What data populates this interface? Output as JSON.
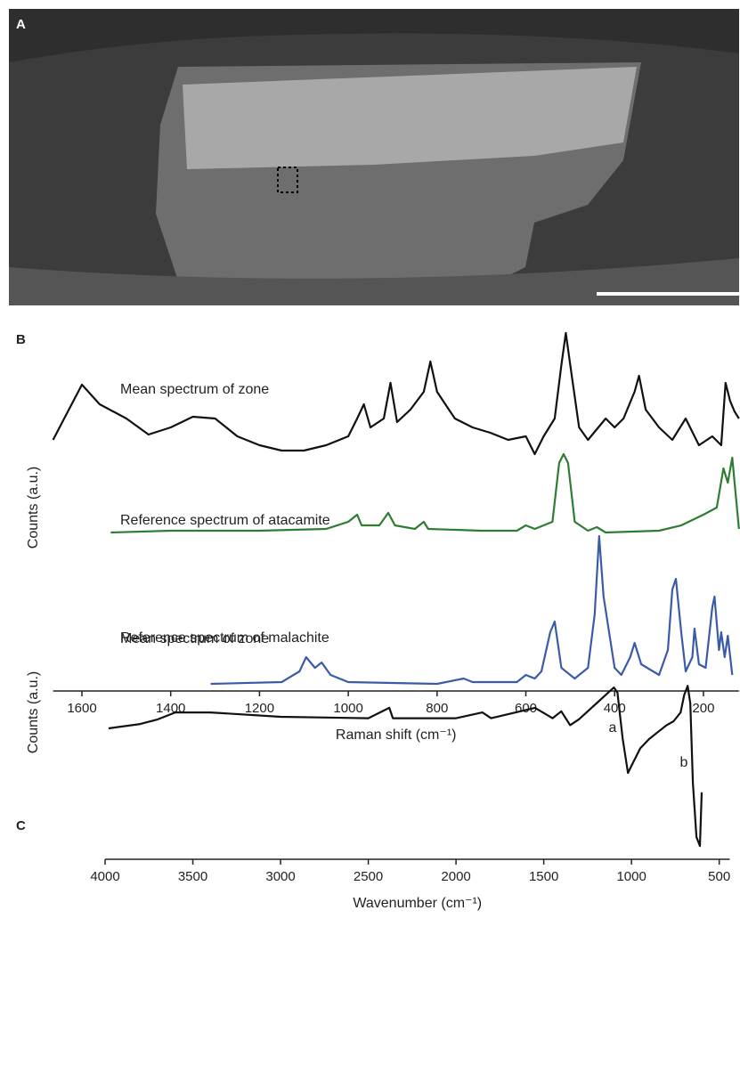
{
  "image_panel": {
    "label": "A"
  },
  "chart_data": [
    {
      "type": "line",
      "panel_label": "B",
      "xlabel": "Raman shift (cm⁻¹)",
      "ylabel": "Counts (a.u.)",
      "xlim": [
        1665,
        120
      ],
      "xticks": [
        1600,
        1400,
        1200,
        1000,
        800,
        600,
        400,
        200
      ],
      "ylim": [
        0,
        100
      ],
      "series": [
        {
          "name": "Mean spectrum of zone",
          "color": "#111111",
          "x": [
            1665,
            1640,
            1600,
            1560,
            1500,
            1450,
            1400,
            1350,
            1300,
            1250,
            1200,
            1150,
            1100,
            1050,
            1000,
            980,
            965,
            950,
            920,
            905,
            890,
            860,
            830,
            815,
            800,
            760,
            720,
            680,
            640,
            600,
            580,
            560,
            535,
            520,
            510,
            500,
            480,
            460,
            420,
            400,
            380,
            355,
            345,
            330,
            300,
            270,
            240,
            210,
            180,
            160,
            150,
            140,
            130,
            120
          ],
          "values": [
            69,
            75,
            84.5,
            79,
            75,
            70.5,
            72.5,
            75.5,
            75,
            70,
            67.5,
            66,
            66,
            67.5,
            70,
            75,
            79,
            72.5,
            75,
            85,
            74,
            77.5,
            82.5,
            91,
            82.5,
            75,
            72.5,
            71,
            69,
            70,
            65,
            70,
            75,
            90,
            99,
            90,
            72.5,
            69,
            75,
            72.5,
            75,
            82.5,
            87,
            77.5,
            72.5,
            69,
            75,
            67.5,
            70,
            67.5,
            85,
            80,
            77,
            75
          ]
        },
        {
          "name": "Reference spectrum of atacamite",
          "color": "#2e7d32",
          "x": [
            1535,
            1400,
            1200,
            1050,
            1000,
            980,
            970,
            930,
            910,
            895,
            850,
            830,
            820,
            700,
            620,
            600,
            580,
            540,
            525,
            515,
            505,
            490,
            460,
            440,
            420,
            300,
            250,
            200,
            170,
            155,
            145,
            135,
            120
          ],
          "values": [
            43,
            43.5,
            43.5,
            44,
            46,
            48,
            45,
            45,
            48.5,
            45,
            44,
            46,
            44,
            43.5,
            43.5,
            45,
            44,
            46,
            62.5,
            65,
            62.5,
            46,
            43.5,
            44.5,
            43,
            43.5,
            45,
            48,
            50,
            61,
            57,
            64,
            44
          ]
        },
        {
          "name": "Reference spectrum of malachite",
          "color": "#3a5ca8",
          "x": [
            1310,
            1150,
            1110,
            1095,
            1075,
            1060,
            1040,
            1000,
            800,
            740,
            720,
            620,
            600,
            580,
            565,
            545,
            535,
            520,
            490,
            460,
            445,
            435,
            425,
            400,
            385,
            365,
            355,
            340,
            300,
            280,
            270,
            262,
            250,
            240,
            225,
            220,
            210,
            195,
            180,
            175,
            165,
            160,
            152,
            145,
            135
          ],
          "values": [
            0.5,
            1,
            4,
            8,
            5,
            6.5,
            3,
            1,
            0.5,
            2,
            1,
            1,
            3,
            2,
            4,
            15,
            18,
            5,
            2,
            5,
            20,
            42,
            25,
            5,
            3,
            8,
            12,
            6,
            3,
            10,
            27,
            30,
            15,
            4,
            8,
            16,
            6,
            5,
            22,
            25,
            10,
            15,
            8,
            14,
            3
          ]
        }
      ]
    },
    {
      "type": "line",
      "panel_label": "C",
      "xlabel": "Wavenumber (cm⁻¹)",
      "ylabel": "Counts (a.u.)",
      "xlim": [
        4000,
        440
      ],
      "xticks": [
        4000,
        3500,
        3000,
        2500,
        2000,
        1500,
        1000,
        500
      ],
      "ylim": [
        0,
        100
      ],
      "annotations": [
        "a",
        "b"
      ],
      "series": [
        {
          "name": "Mean spectrum of zone",
          "color": "#111111",
          "x": [
            3980,
            3800,
            3700,
            3600,
            3400,
            3000,
            2500,
            2380,
            2360,
            2000,
            1850,
            1800,
            1550,
            1450,
            1400,
            1350,
            1300,
            1200,
            1100,
            1080,
            1050,
            1020,
            1000,
            950,
            900,
            850,
            800,
            760,
            720,
            700,
            680,
            665,
            650,
            630,
            610,
            600
          ],
          "values": [
            54.6,
            56.5,
            58.5,
            61.5,
            61.5,
            59.6,
            59,
            63.5,
            59,
            59,
            61.5,
            59,
            63.5,
            59,
            62,
            56,
            58.5,
            65.4,
            72.3,
            70,
            50,
            35.4,
            38.5,
            46,
            50,
            53,
            56,
            57.7,
            61.5,
            69,
            73,
            65.4,
            31,
            7.7,
            3.8,
            27
          ]
        }
      ]
    }
  ]
}
